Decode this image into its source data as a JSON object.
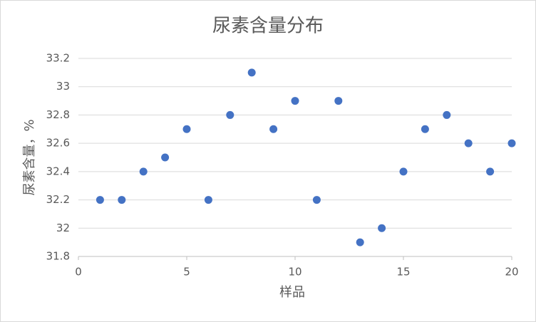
{
  "chart_data": {
    "type": "scatter",
    "title": "尿素含量分布",
    "x_label": "样品",
    "y_label": "尿素含量，%",
    "x": [
      1,
      2,
      3,
      4,
      5,
      6,
      7,
      8,
      9,
      10,
      11,
      12,
      13,
      14,
      15,
      16,
      17,
      18,
      19,
      20
    ],
    "series": [
      {
        "color": "#4472c4",
        "values": [
          32.2,
          32.2,
          32.4,
          32.5,
          32.7,
          32.2,
          32.8,
          33.1,
          32.7,
          32.9,
          32.2,
          32.9,
          31.9,
          32.0,
          32.4,
          32.7,
          32.8,
          32.6,
          32.4,
          32.6
        ]
      }
    ],
    "xlim": [
      0,
      20
    ],
    "xticks": [
      0,
      5,
      10,
      15,
      20
    ],
    "ylim": [
      31.8,
      33.2
    ],
    "yticks": [
      31.8,
      32,
      32.2,
      32.4,
      32.6,
      32.8,
      33,
      33.2
    ],
    "grid": true
  }
}
